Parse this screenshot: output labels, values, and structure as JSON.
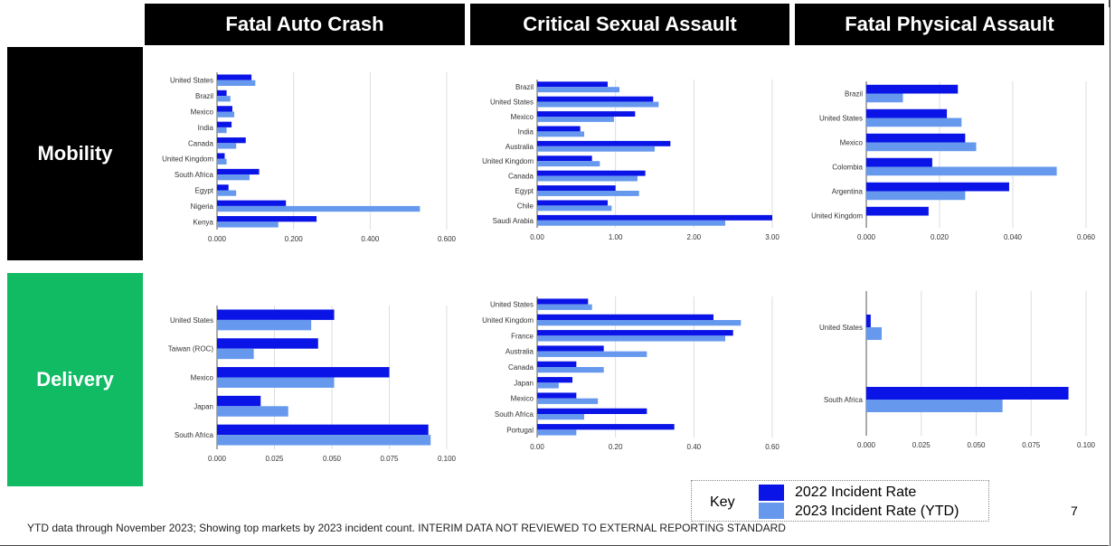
{
  "colors": {
    "series_2022": "#0a14e6",
    "series_2023": "#6699ee",
    "mobility_bg": "#000000",
    "delivery_bg": "#10bb64",
    "header_bg": "#000000",
    "grid": "#dddddd"
  },
  "columns": [
    "Fatal Auto Crash",
    "Critical Sexual Assault",
    "Fatal Physical Assault"
  ],
  "rows": [
    "Mobility",
    "Delivery"
  ],
  "key": {
    "title": "Key",
    "items": [
      "2022 Incident Rate",
      "2023 Incident Rate (YTD)"
    ]
  },
  "footnote": "YTD data through November 2023; Showing top markets by 2023 incident count.  INTERIM DATA NOT REVIEWED TO EXTERNAL REPORTING STANDARD",
  "page_number": "7",
  "chart_data": [
    {
      "type": "bar",
      "orientation": "horizontal",
      "categories": [
        "United States",
        "Brazil",
        "Mexico",
        "India",
        "Canada",
        "United Kingdom",
        "South Africa",
        "Egypt",
        "Nigeria",
        "Kenya"
      ],
      "series": [
        {
          "name": "2022 Incident Rate",
          "values": [
            0.09,
            0.025,
            0.04,
            0.038,
            0.075,
            0.02,
            0.11,
            0.03,
            0.18,
            0.26
          ]
        },
        {
          "name": "2023 Incident Rate (YTD)",
          "values": [
            0.1,
            0.035,
            0.045,
            0.025,
            0.05,
            0.025,
            0.085,
            0.05,
            0.53,
            0.16
          ]
        }
      ],
      "xlim": [
        0,
        0.6
      ],
      "xticks": [
        0,
        0.2,
        0.4,
        0.6
      ],
      "xtick_labels": [
        "0.000",
        "0.200",
        "0.400",
        "0.600"
      ]
    },
    {
      "type": "bar",
      "orientation": "horizontal",
      "categories": [
        "Brazil",
        "United States",
        "Mexico",
        "India",
        "Australia",
        "United Kingdom",
        "Canada",
        "Egypt",
        "Chile",
        "Saudi Arabia"
      ],
      "series": [
        {
          "name": "2022 Incident Rate",
          "values": [
            0.9,
            1.48,
            1.25,
            0.55,
            1.7,
            0.7,
            1.38,
            1.0,
            0.9,
            3.0
          ]
        },
        {
          "name": "2023 Incident Rate (YTD)",
          "values": [
            1.05,
            1.55,
            0.98,
            0.6,
            1.5,
            0.8,
            1.28,
            1.3,
            0.95,
            2.4
          ]
        }
      ],
      "xlim": [
        0,
        3.0
      ],
      "xticks": [
        0,
        1,
        2,
        3
      ],
      "xtick_labels": [
        "0.00",
        "1.00",
        "2.00",
        "3.00"
      ]
    },
    {
      "type": "bar",
      "orientation": "horizontal",
      "categories": [
        "Brazil",
        "United States",
        "Mexico",
        "Colombia",
        "Argentina",
        "United Kingdom"
      ],
      "series": [
        {
          "name": "2022 Incident Rate",
          "values": [
            0.025,
            0.022,
            0.027,
            0.018,
            0.039,
            0.017
          ]
        },
        {
          "name": "2023 Incident Rate (YTD)",
          "values": [
            0.01,
            0.026,
            0.03,
            0.052,
            0.027,
            0.0
          ]
        }
      ],
      "xlim": [
        0,
        0.06
      ],
      "xticks": [
        0,
        0.02,
        0.04,
        0.06
      ],
      "xtick_labels": [
        "0.000",
        "0.020",
        "0.040",
        "0.060"
      ]
    },
    {
      "type": "bar",
      "orientation": "horizontal",
      "categories": [
        "United States",
        "Taiwan (ROC)",
        "Mexico",
        "Japan",
        "South Africa"
      ],
      "series": [
        {
          "name": "2022 Incident Rate",
          "values": [
            0.051,
            0.044,
            0.075,
            0.019,
            0.092
          ]
        },
        {
          "name": "2023 Incident Rate (YTD)",
          "values": [
            0.041,
            0.016,
            0.051,
            0.031,
            0.093
          ]
        }
      ],
      "xlim": [
        0,
        0.1
      ],
      "xticks": [
        0,
        0.025,
        0.05,
        0.075,
        0.1
      ],
      "xtick_labels": [
        "0.000",
        "0.025",
        "0.050",
        "0.075",
        "0.100"
      ]
    },
    {
      "type": "bar",
      "orientation": "horizontal",
      "categories": [
        "United States",
        "United Kingdom",
        "France",
        "Australia",
        "Canada",
        "Japan",
        "Mexico",
        "South Africa",
        "Portugal"
      ],
      "series": [
        {
          "name": "2022 Incident Rate",
          "values": [
            0.13,
            0.45,
            0.5,
            0.17,
            0.1,
            0.09,
            0.1,
            0.28,
            0.35
          ]
        },
        {
          "name": "2023 Incident Rate (YTD)",
          "values": [
            0.14,
            0.52,
            0.48,
            0.28,
            0.17,
            0.055,
            0.155,
            0.12,
            0.1
          ]
        }
      ],
      "xlim": [
        0,
        0.6
      ],
      "xticks": [
        0,
        0.2,
        0.4,
        0.6
      ],
      "xtick_labels": [
        "0.00",
        "0.20",
        "0.40",
        "0.60"
      ]
    },
    {
      "type": "bar",
      "orientation": "horizontal",
      "categories": [
        "United States",
        "South Africa"
      ],
      "series": [
        {
          "name": "2022 Incident Rate",
          "values": [
            0.002,
            0.092
          ]
        },
        {
          "name": "2023 Incident Rate (YTD)",
          "values": [
            0.007,
            0.062
          ]
        }
      ],
      "xlim": [
        0,
        0.1
      ],
      "xticks": [
        0,
        0.025,
        0.05,
        0.075,
        0.1
      ],
      "xtick_labels": [
        "0.000",
        "0.025",
        "0.050",
        "0.075",
        "0.100"
      ]
    }
  ]
}
